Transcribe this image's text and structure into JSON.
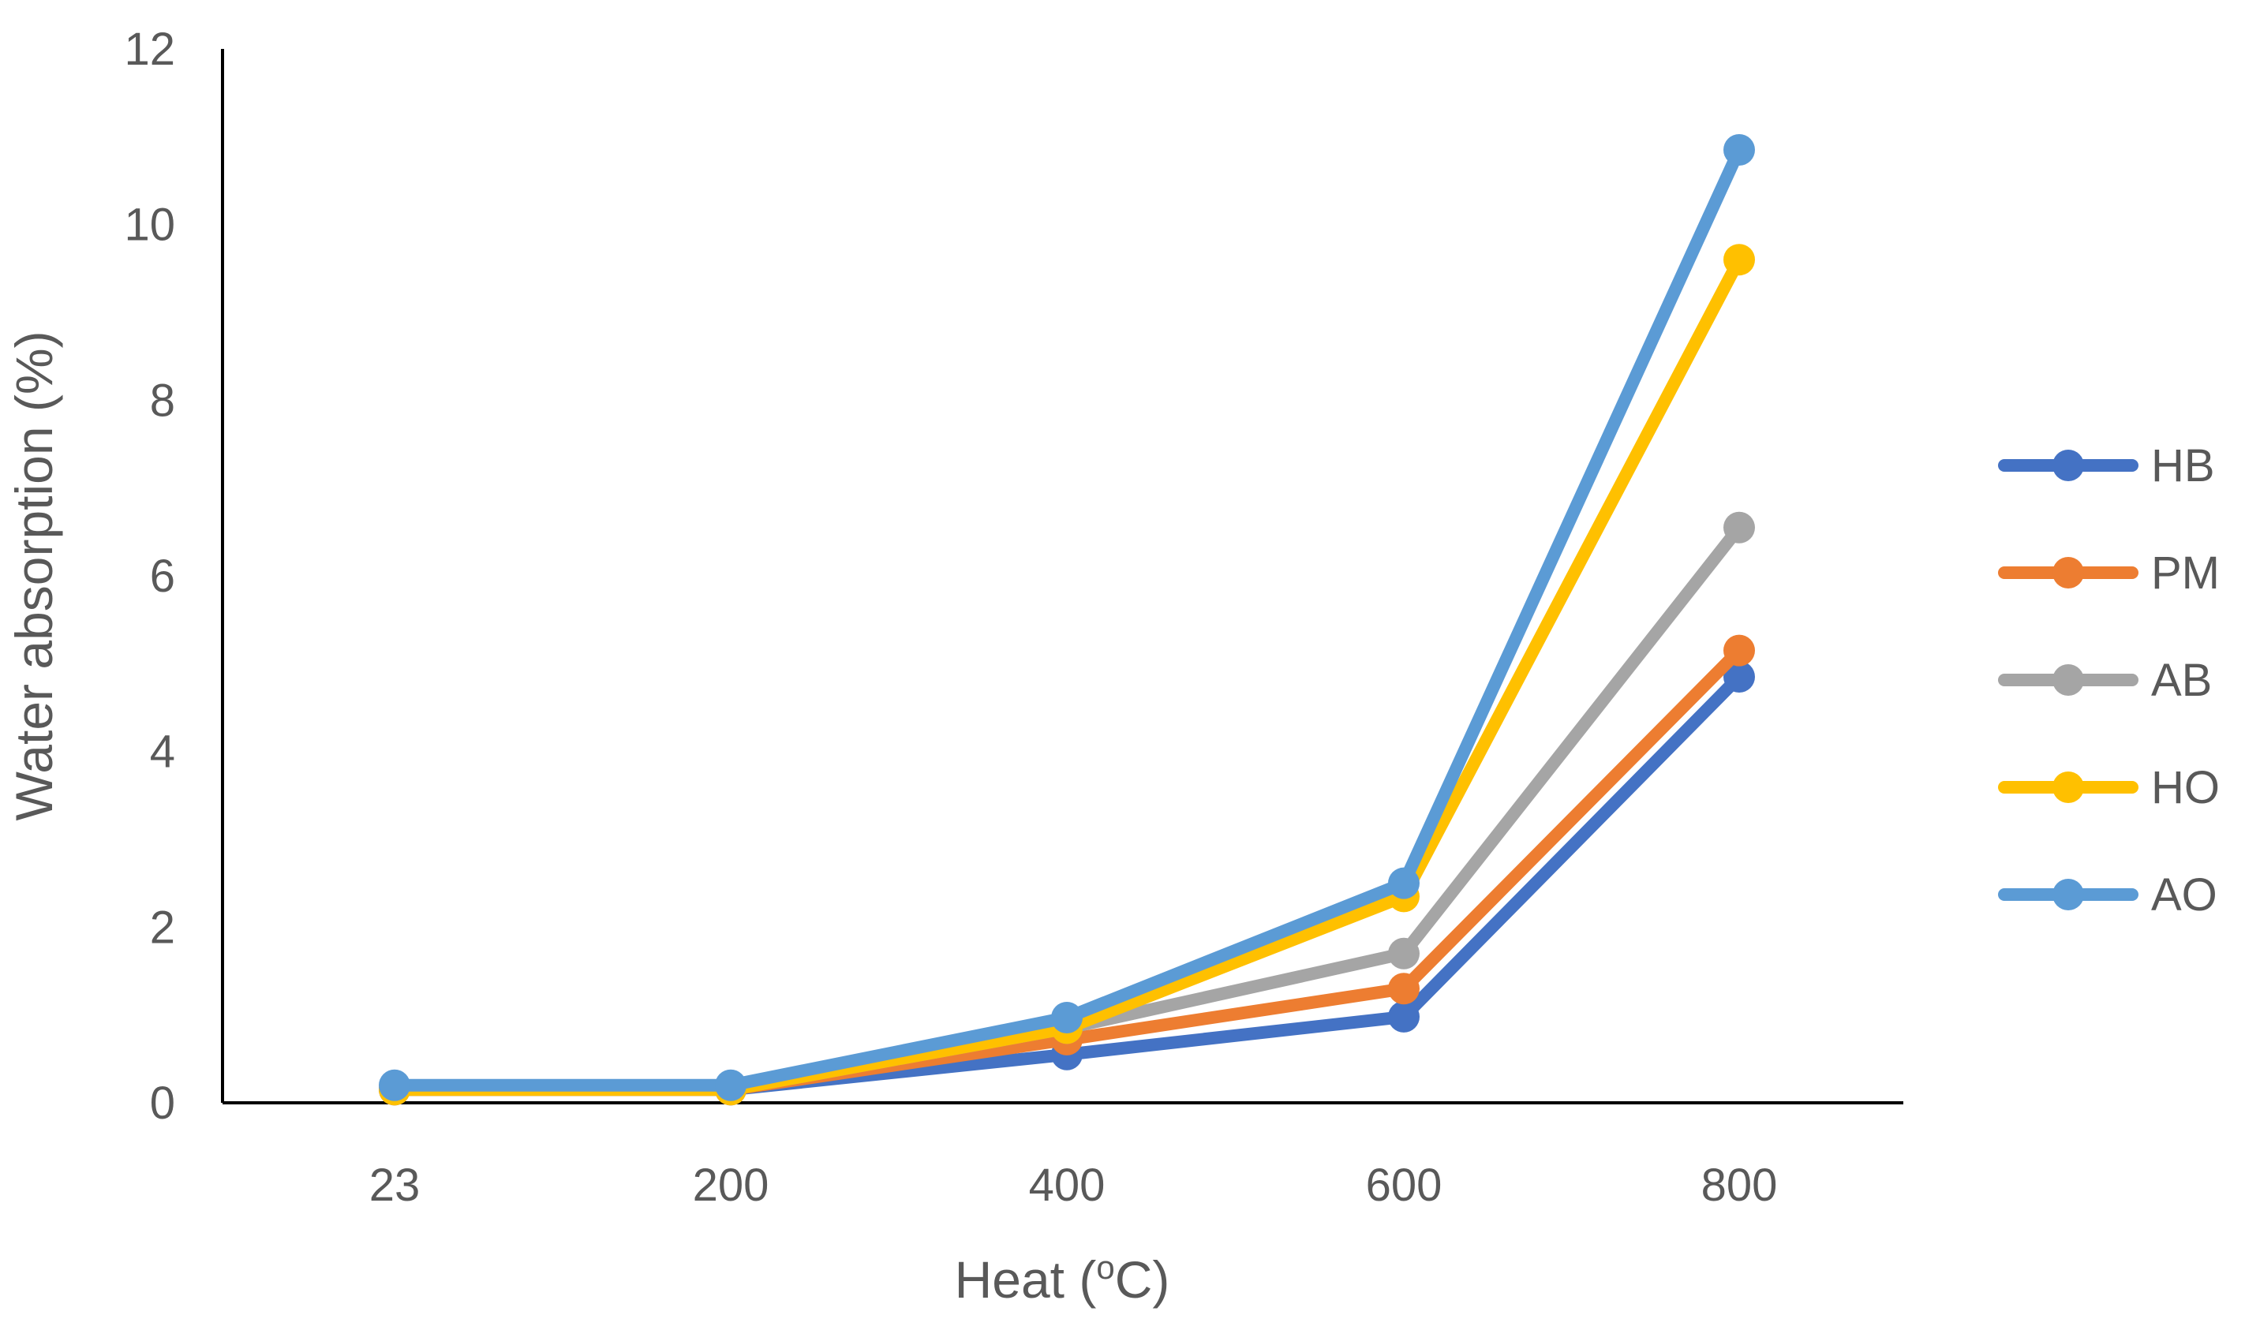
{
  "chart_data": {
    "type": "line",
    "title": "",
    "xlabel": "Heat",
    "xlabel_unit_open": "(",
    "xlabel_unit_sup": "o",
    "xlabel_unit_close": "C)",
    "ylabel": "Water absorption (%)",
    "categories": [
      "23",
      "200",
      "400",
      "600",
      "800"
    ],
    "ylim": [
      0,
      12
    ],
    "yticks": [
      "0",
      "2",
      "4",
      "6",
      "8",
      "10",
      "12"
    ],
    "grid": false,
    "legend_position": "right",
    "series": [
      {
        "name": "HB",
        "color": "#4472C4",
        "values": [
          0.15,
          0.15,
          0.55,
          0.98,
          4.85
        ]
      },
      {
        "name": "PM",
        "color": "#ED7D31",
        "values": [
          0.15,
          0.15,
          0.72,
          1.3,
          5.15
        ]
      },
      {
        "name": "AB",
        "color": "#A5A5A5",
        "values": [
          0.15,
          0.15,
          0.85,
          1.7,
          6.55
        ]
      },
      {
        "name": "HO",
        "color": "#FFC000",
        "values": [
          0.15,
          0.15,
          0.85,
          2.35,
          9.6
        ]
      },
      {
        "name": "AO",
        "color": "#5B9BD5",
        "values": [
          0.2,
          0.2,
          0.97,
          2.5,
          10.85
        ]
      }
    ]
  }
}
